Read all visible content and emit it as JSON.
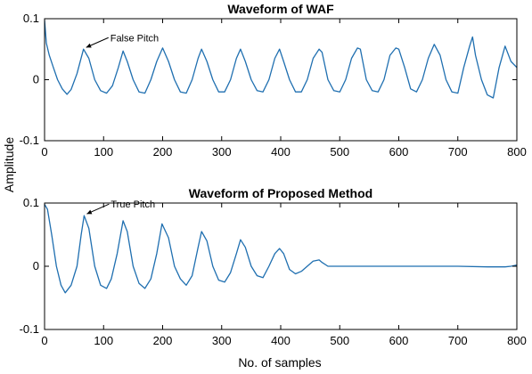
{
  "colors": {
    "line": "#1f6fb0",
    "axis": "#000000",
    "background": "#ffffff"
  },
  "figure": {
    "shared_ylabel": "Amplitude",
    "shared_xlabel": "No. of samples"
  },
  "chart_data": [
    {
      "type": "line",
      "title": "Waveform of WAF",
      "xlabel": "",
      "ylabel": "Amplitude",
      "xlim": [
        0,
        800
      ],
      "ylim": [
        -0.1,
        0.1
      ],
      "xticks": [
        0,
        100,
        200,
        300,
        400,
        500,
        600,
        700,
        800
      ],
      "yticks": [
        -0.1,
        0,
        0.1
      ],
      "xtick_labels": [
        "0",
        "100",
        "200",
        "300",
        "400",
        "500",
        "600",
        "700",
        "800"
      ],
      "ytick_labels": [
        "-0.1",
        "0",
        "0.1"
      ],
      "grid": false,
      "x": [
        0,
        3,
        8,
        15,
        22,
        30,
        38,
        45,
        55,
        66,
        75,
        85,
        95,
        105,
        115,
        125,
        133,
        140,
        150,
        160,
        170,
        180,
        190,
        200,
        210,
        220,
        230,
        240,
        250,
        260,
        266,
        275,
        285,
        295,
        305,
        315,
        325,
        332,
        340,
        350,
        360,
        370,
        380,
        390,
        398,
        405,
        415,
        425,
        435,
        445,
        455,
        465,
        470,
        480,
        490,
        500,
        510,
        520,
        530,
        535,
        545,
        555,
        565,
        575,
        585,
        595,
        600,
        610,
        620,
        630,
        640,
        650,
        660,
        670,
        680,
        690,
        700,
        710,
        720,
        725,
        730,
        740,
        750,
        760,
        770,
        780,
        790,
        800
      ],
      "y": [
        0.098,
        0.06,
        0.04,
        0.02,
        0.0,
        -0.015,
        -0.024,
        -0.016,
        0.01,
        0.05,
        0.035,
        0.0,
        -0.018,
        -0.022,
        -0.01,
        0.02,
        0.047,
        0.03,
        0.0,
        -0.02,
        -0.022,
        0.0,
        0.03,
        0.052,
        0.03,
        0.0,
        -0.02,
        -0.022,
        0.0,
        0.035,
        0.05,
        0.03,
        0.0,
        -0.02,
        -0.02,
        0.0,
        0.035,
        0.05,
        0.03,
        0.0,
        -0.018,
        -0.02,
        0.0,
        0.035,
        0.05,
        0.03,
        0.0,
        -0.02,
        -0.02,
        0.0,
        0.035,
        0.05,
        0.045,
        0.0,
        -0.018,
        -0.02,
        0.0,
        0.035,
        0.052,
        0.05,
        0.0,
        -0.018,
        -0.02,
        0.0,
        0.04,
        0.052,
        0.05,
        0.02,
        -0.015,
        -0.02,
        0.0,
        0.035,
        0.058,
        0.04,
        0.0,
        -0.02,
        -0.022,
        0.02,
        0.055,
        0.07,
        0.04,
        0.0,
        -0.025,
        -0.03,
        0.02,
        0.055,
        0.03,
        0.02
      ],
      "annotations": [
        {
          "text": "False Pitch",
          "x": 66,
          "y": 0.05
        }
      ]
    },
    {
      "type": "line",
      "title": "Waveform of Proposed Method",
      "xlabel": "No. of samples",
      "ylabel": "Amplitude",
      "xlim": [
        0,
        800
      ],
      "ylim": [
        -0.1,
        0.1
      ],
      "xticks": [
        0,
        100,
        200,
        300,
        400,
        500,
        600,
        700,
        800
      ],
      "yticks": [
        -0.1,
        0,
        0.1
      ],
      "xtick_labels": [
        "0",
        "100",
        "200",
        "300",
        "400",
        "500",
        "600",
        "700",
        "800"
      ],
      "ytick_labels": [
        "-0.1",
        "0",
        "0.1"
      ],
      "grid": false,
      "x": [
        0,
        5,
        12,
        20,
        28,
        35,
        45,
        55,
        62,
        67,
        75,
        85,
        95,
        105,
        113,
        123,
        133,
        140,
        150,
        160,
        170,
        180,
        190,
        199,
        210,
        220,
        230,
        240,
        250,
        260,
        266,
        275,
        285,
        295,
        305,
        315,
        325,
        332,
        340,
        350,
        360,
        370,
        380,
        390,
        398,
        405,
        415,
        425,
        435,
        445,
        455,
        465,
        470,
        480,
        500,
        550,
        600,
        650,
        700,
        750,
        780,
        790,
        800
      ],
      "y": [
        0.098,
        0.09,
        0.05,
        0.0,
        -0.03,
        -0.042,
        -0.03,
        0.0,
        0.05,
        0.08,
        0.06,
        0.0,
        -0.03,
        -0.035,
        -0.02,
        0.02,
        0.072,
        0.055,
        0.0,
        -0.027,
        -0.035,
        -0.02,
        0.02,
        0.067,
        0.045,
        0.0,
        -0.02,
        -0.03,
        -0.015,
        0.03,
        0.055,
        0.04,
        0.0,
        -0.022,
        -0.025,
        -0.01,
        0.02,
        0.042,
        0.03,
        0.0,
        -0.015,
        -0.018,
        0.0,
        0.02,
        0.028,
        0.02,
        -0.005,
        -0.012,
        -0.008,
        0.0,
        0.008,
        0.01,
        0.006,
        0.0,
        0.0,
        0.0,
        0.0,
        0.0,
        0.0,
        -0.001,
        -0.001,
        0.0,
        0.002
      ],
      "annotations": [
        {
          "text": "True Pitch",
          "x": 67,
          "y": 0.08
        }
      ]
    }
  ]
}
